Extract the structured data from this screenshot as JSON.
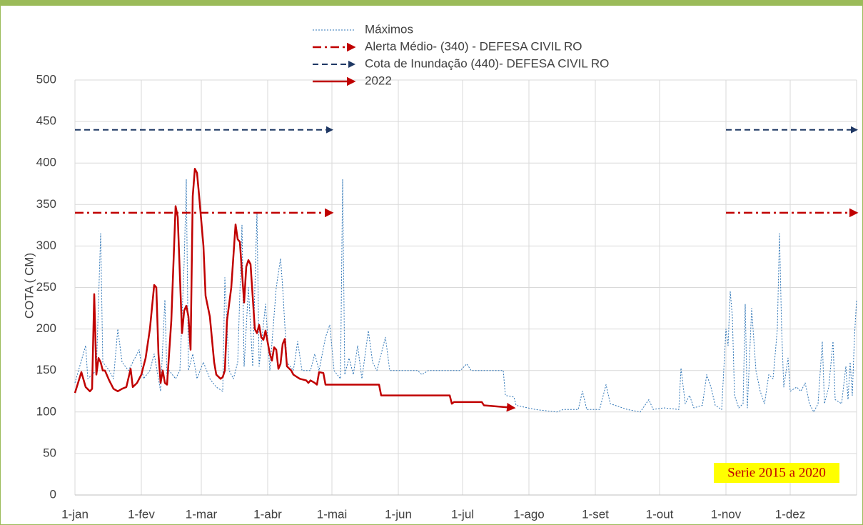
{
  "chart_data": {
    "type": "line",
    "y_label": "COTA ( CM)",
    "annotation": "Serie 2015 a 2020",
    "xlim": [
      0,
      365
    ],
    "xticks": [
      {
        "value": 0,
        "label": "1-jan"
      },
      {
        "value": 31,
        "label": "1-fev"
      },
      {
        "value": 59,
        "label": "1-mar"
      },
      {
        "value": 90,
        "label": "1-abr"
      },
      {
        "value": 120,
        "label": "1-mai"
      },
      {
        "value": 151,
        "label": "1-jun"
      },
      {
        "value": 181,
        "label": "1-jul"
      },
      {
        "value": 212,
        "label": "1-ago"
      },
      {
        "value": 243,
        "label": "1-set"
      },
      {
        "value": 273,
        "label": "1-out"
      },
      {
        "value": 304,
        "label": "1-nov"
      },
      {
        "value": 334,
        "label": "1-dez"
      }
    ],
    "ylim": [
      0,
      500
    ],
    "yticks": [
      0,
      50,
      100,
      150,
      200,
      250,
      300,
      350,
      400,
      450,
      500
    ],
    "grid": true,
    "series": [
      {
        "name": "Máximos",
        "color": "#2e75b6",
        "x": [
          0,
          5,
          6,
          10,
          12,
          13,
          16,
          18,
          20,
          22,
          25,
          30,
          32,
          35,
          37,
          40,
          42,
          43,
          44,
          47,
          49,
          51,
          52,
          53,
          55,
          57,
          60,
          63,
          66,
          69,
          70,
          72,
          74,
          76,
          78,
          79,
          81,
          83,
          85,
          86,
          89,
          91,
          94,
          96,
          97,
          99,
          102,
          104,
          106,
          110,
          112,
          114,
          117,
          119,
          121,
          124,
          125,
          126,
          128,
          130,
          132,
          134,
          137,
          139,
          141,
          145,
          147,
          160,
          162,
          165,
          180,
          183,
          185,
          200,
          201,
          205,
          206,
          215,
          225,
          228,
          235,
          237,
          239,
          245,
          248,
          250,
          258,
          264,
          268,
          270,
          275,
          282,
          283,
          285,
          287,
          289,
          293,
          295,
          297,
          299,
          302,
          304,
          305,
          306,
          307,
          308,
          310,
          312,
          313,
          314,
          316,
          318,
          320,
          322,
          324,
          326,
          328,
          329,
          330,
          331,
          333,
          334,
          337,
          339,
          341,
          343,
          345,
          347,
          349,
          350,
          352,
          354,
          355,
          358,
          360,
          361,
          362,
          363,
          364,
          365
        ],
        "values": [
          135,
          180,
          140,
          150,
          315,
          160,
          150,
          140,
          200,
          160,
          150,
          175,
          140,
          150,
          170,
          125,
          235,
          140,
          150,
          140,
          150,
          280,
          380,
          150,
          170,
          140,
          160,
          140,
          130,
          125,
          262,
          150,
          140,
          160,
          325,
          155,
          250,
          155,
          340,
          155,
          230,
          150,
          250,
          285,
          250,
          160,
          150,
          185,
          150,
          150,
          170,
          150,
          190,
          205,
          150,
          140,
          380,
          145,
          165,
          145,
          180,
          140,
          198,
          160,
          150,
          190,
          150,
          150,
          145,
          150,
          150,
          158,
          150,
          150,
          120,
          118,
          108,
          103,
          100,
          103,
          103,
          125,
          103,
          103,
          133,
          110,
          103,
          100,
          115,
          103,
          105,
          103,
          153,
          110,
          120,
          105,
          108,
          145,
          130,
          108,
          103,
          200,
          180,
          245,
          215,
          120,
          105,
          110,
          230,
          105,
          225,
          150,
          125,
          110,
          145,
          140,
          200,
          315,
          200,
          130,
          165,
          125,
          130,
          125,
          135,
          110,
          100,
          110,
          185,
          110,
          130,
          185,
          115,
          110,
          155,
          115,
          160,
          120,
          190,
          235
        ]
      },
      {
        "name": "Alerta Médio-  (340) - DEFESA CIVIL RO",
        "color": "#c00000",
        "x": [
          0,
          120,
          null,
          304,
          365
        ],
        "values": [
          340,
          340,
          null,
          340,
          340
        ]
      },
      {
        "name": "Cota de Inundação  (440)- DEFESA CIVIL RO",
        "color": "#1f3864",
        "x": [
          0,
          120,
          null,
          304,
          365
        ],
        "values": [
          440,
          440,
          null,
          440,
          440
        ]
      },
      {
        "name": "2022",
        "color": "#c00000",
        "x": [
          0,
          3,
          5,
          7,
          8,
          9,
          10,
          11,
          12,
          13,
          14,
          16,
          18,
          20,
          22,
          24,
          26,
          27,
          29,
          31,
          33,
          35,
          37,
          38,
          39,
          40,
          41,
          42,
          43,
          45,
          47,
          48,
          50,
          51,
          52,
          53,
          54,
          55,
          56,
          57,
          58,
          60,
          61,
          63,
          65,
          66,
          68,
          69,
          70,
          71,
          73,
          75,
          76,
          77,
          79,
          80,
          81,
          82,
          84,
          85,
          86,
          87,
          88,
          89,
          91,
          92,
          93,
          94,
          95,
          96,
          97,
          98,
          99,
          101,
          102,
          105,
          108,
          109,
          110,
          112,
          113,
          114,
          116,
          117,
          135,
          142,
          143,
          175,
          176,
          177,
          190,
          191,
          205
        ],
        "values": [
          123,
          148,
          130,
          125,
          128,
          242,
          145,
          165,
          160,
          150,
          150,
          138,
          128,
          125,
          128,
          130,
          152,
          130,
          135,
          145,
          165,
          200,
          253,
          250,
          170,
          135,
          150,
          135,
          133,
          210,
          348,
          335,
          195,
          222,
          228,
          215,
          175,
          360,
          393,
          388,
          360,
          300,
          240,
          215,
          160,
          145,
          140,
          142,
          150,
          210,
          250,
          326,
          308,
          305,
          232,
          275,
          283,
          278,
          200,
          195,
          205,
          190,
          187,
          198,
          170,
          162,
          178,
          175,
          152,
          158,
          182,
          188,
          155,
          150,
          145,
          140,
          138,
          135,
          138,
          135,
          133,
          148,
          147,
          133,
          133,
          133,
          120,
          120,
          110,
          112,
          112,
          108,
          105
        ]
      }
    ]
  }
}
